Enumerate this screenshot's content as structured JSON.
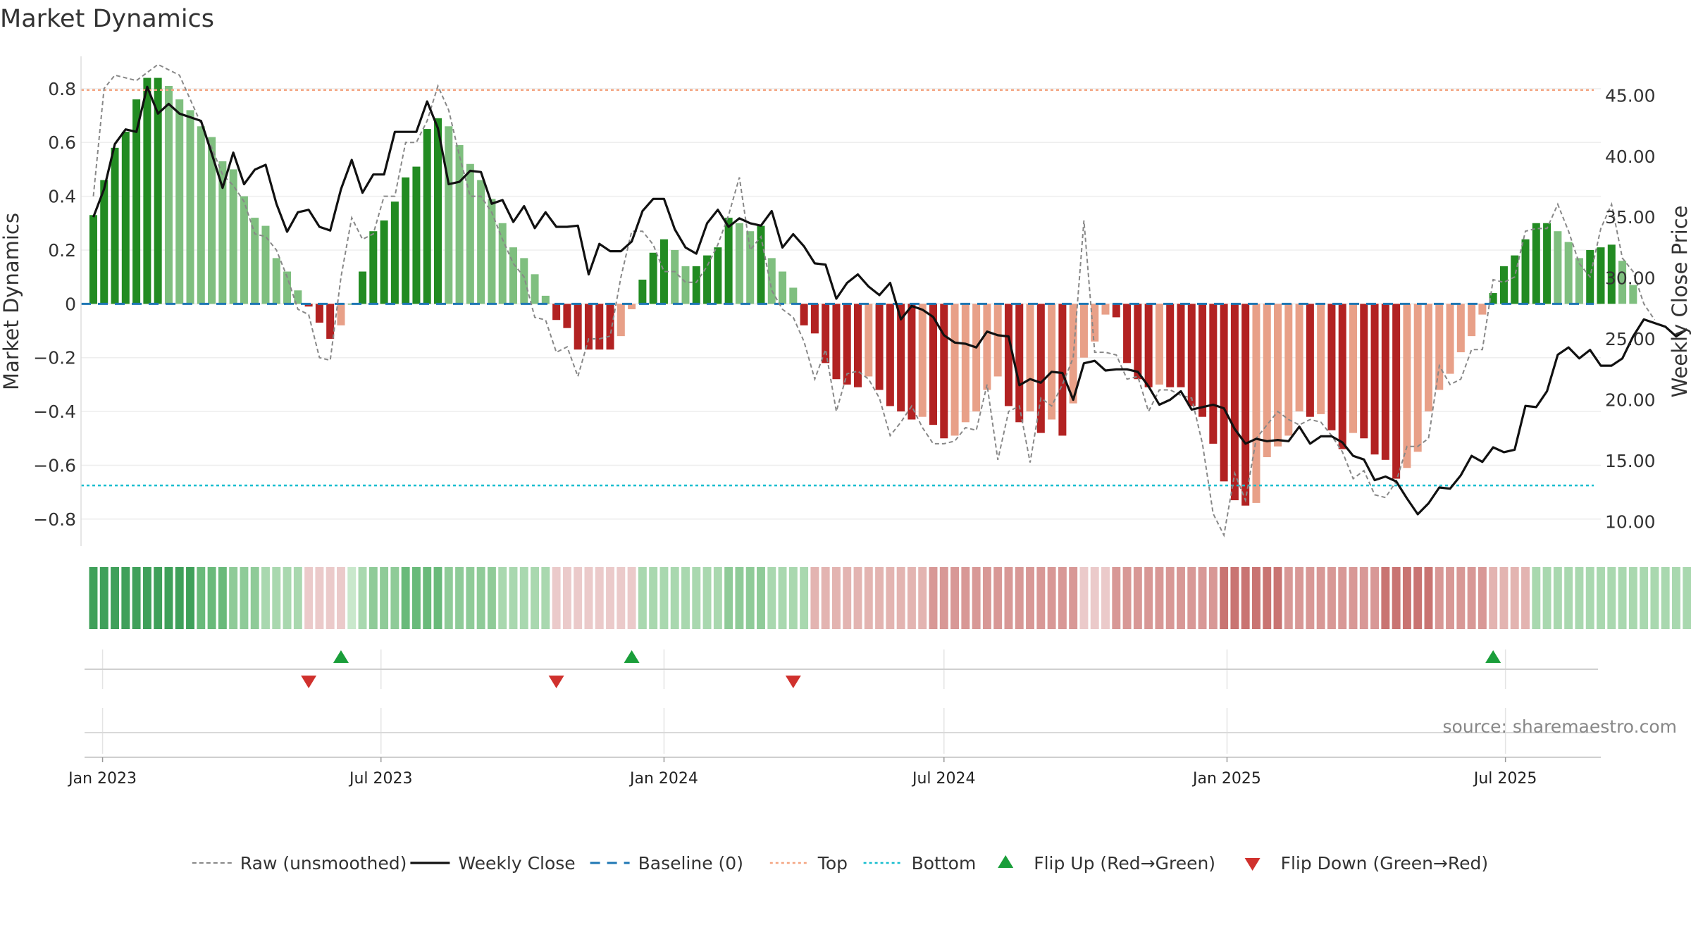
{
  "title": "Market Dynamics",
  "source": "source: sharemaestro.com",
  "colors": {
    "green_dark": "#228B22",
    "green_light": "#7FBF7F",
    "red_dark": "#B22222",
    "red_light": "#E8A088",
    "top_line": "#F4A582",
    "bottom_line": "#17BECF",
    "baseline": "#1F77B4",
    "close": "#111111",
    "raw": "#888888",
    "flip_up": "#1A9E3A",
    "flip_down": "#D0312D"
  },
  "chart_data": {
    "type": "bar",
    "title": "Market Dynamics",
    "y_label": "Market Dynamics",
    "y2_label": "Weekly Close Price",
    "y_ticks": [
      0.8,
      0.6,
      0.4,
      0.2,
      0,
      -0.2,
      -0.4,
      -0.6,
      -0.8
    ],
    "y_tick_labels": [
      "0.8",
      "0.6",
      "0.4",
      "0.2",
      "0",
      "−0.2",
      "−0.4",
      "−0.6",
      "−0.8"
    ],
    "y_range": [
      -0.9,
      0.92
    ],
    "y2_ticks": [
      45,
      40,
      35,
      30,
      25,
      20,
      15,
      10
    ],
    "y2_tick_labels": [
      "45.00",
      "40.00",
      "35.00",
      "30.00",
      "25.00",
      "20.00",
      "15.00",
      "10.00"
    ],
    "y2_range": [
      8.0,
      48.2
    ],
    "x_ticks": [
      "2023-01-01",
      "2023-07-01",
      "2024-01-01",
      "2024-07-01",
      "2025-01-01",
      "2025-07-01"
    ],
    "x_tick_labels": [
      "Jan 2023",
      "Jul 2023",
      "Jan 2024",
      "Jul 2024",
      "Jan 2025",
      "Jul 2025"
    ],
    "x_range": [
      "2022-12-18",
      "2025-09-01"
    ],
    "top_level": 0.795,
    "bottom_level": -0.675,
    "baseline_level": 0,
    "start_date": "2022-12-26",
    "week_step_days": 7,
    "dynamics_bars": [
      0.33,
      0.46,
      0.58,
      0.64,
      0.76,
      0.84,
      0.84,
      0.81,
      0.76,
      0.72,
      0.66,
      0.62,
      0.53,
      0.5,
      0.4,
      0.32,
      0.29,
      0.17,
      0.12,
      0.05,
      -0.01,
      -0.07,
      -0.13,
      -0.08,
      0.0,
      0.12,
      0.27,
      0.31,
      0.38,
      0.47,
      0.51,
      0.65,
      0.69,
      0.66,
      0.59,
      0.52,
      0.46,
      0.39,
      0.3,
      0.21,
      0.17,
      0.11,
      0.03,
      -0.06,
      -0.09,
      -0.17,
      -0.17,
      -0.17,
      -0.17,
      -0.12,
      -0.02,
      0.09,
      0.19,
      0.24,
      0.2,
      0.14,
      0.14,
      0.18,
      0.21,
      0.32,
      0.3,
      0.27,
      0.29,
      0.17,
      0.12,
      0.06,
      -0.08,
      -0.11,
      -0.22,
      -0.28,
      -0.3,
      -0.31,
      -0.27,
      -0.32,
      -0.38,
      -0.4,
      -0.43,
      -0.42,
      -0.45,
      -0.5,
      -0.49,
      -0.44,
      -0.4,
      -0.32,
      -0.27,
      -0.38,
      -0.44,
      -0.4,
      -0.48,
      -0.43,
      -0.49,
      -0.37,
      -0.2,
      -0.14,
      -0.04,
      -0.05,
      -0.22,
      -0.28,
      -0.31,
      -0.3,
      -0.31,
      -0.31,
      -0.38,
      -0.42,
      -0.52,
      -0.66,
      -0.73,
      -0.75,
      -0.74,
      -0.57,
      -0.53,
      -0.49,
      -0.4,
      -0.42,
      -0.41,
      -0.47,
      -0.54,
      -0.48,
      -0.5,
      -0.56,
      -0.58,
      -0.65,
      -0.61,
      -0.55,
      -0.4,
      -0.32,
      -0.26,
      -0.18,
      -0.12,
      -0.04,
      0.04,
      0.14,
      0.18,
      0.24,
      0.3,
      0.3,
      0.27,
      0.23,
      0.17,
      0.2,
      0.21,
      0.22,
      0.16,
      0.07
    ],
    "state_levels": [
      5,
      5,
      5,
      5,
      5,
      5,
      5,
      5,
      5,
      5,
      4,
      4,
      4,
      3,
      3,
      3,
      2,
      2,
      2,
      2,
      -1,
      -1,
      -1,
      -1,
      1,
      2,
      3,
      3,
      3,
      4,
      4,
      4,
      4,
      3,
      3,
      3,
      3,
      3,
      2,
      2,
      2,
      2,
      2,
      -1,
      -1,
      -1,
      -1,
      -1,
      -1,
      -1,
      -1,
      2,
      2,
      2,
      2,
      2,
      2,
      2,
      2,
      3,
      3,
      3,
      3,
      2,
      2,
      2,
      2,
      -2,
      -2,
      -2,
      -2,
      -2,
      -2,
      -2,
      -2,
      -2,
      -2,
      -2,
      -3,
      -3,
      -3,
      -3,
      -3,
      -3,
      -3,
      -3,
      -3,
      -3,
      -3,
      -3,
      -3,
      -3,
      -1,
      -1,
      -1,
      -3,
      -3,
      -3,
      -3,
      -3,
      -3,
      -3,
      -3,
      -3,
      -3,
      -4,
      -4,
      -4,
      -4,
      -4,
      -4,
      -3,
      -3,
      -3,
      -3,
      -3,
      -3,
      -3,
      -3,
      -3,
      -4,
      -4,
      -4,
      -4,
      -4,
      -3,
      -3,
      -3,
      -3,
      -3,
      -2,
      -2,
      -2,
      -2,
      2,
      2,
      2,
      2,
      2,
      2,
      2,
      2,
      2,
      2,
      2,
      2,
      2,
      2,
      2,
      2
    ],
    "raw_series": [
      0.4,
      0.8,
      0.85,
      0.84,
      0.83,
      0.86,
      0.89,
      0.87,
      0.85,
      0.76,
      0.67,
      0.58,
      0.48,
      0.44,
      0.38,
      0.26,
      0.25,
      0.2,
      0.1,
      -0.02,
      -0.04,
      -0.2,
      -0.21,
      0.1,
      0.32,
      0.24,
      0.26,
      0.4,
      0.4,
      0.6,
      0.6,
      0.68,
      0.81,
      0.72,
      0.55,
      0.4,
      0.4,
      0.34,
      0.24,
      0.15,
      0.1,
      -0.05,
      -0.06,
      -0.18,
      -0.16,
      -0.27,
      -0.13,
      -0.13,
      -0.12,
      0.1,
      0.27,
      0.27,
      0.22,
      0.12,
      0.12,
      0.08,
      0.08,
      0.14,
      0.22,
      0.33,
      0.47,
      0.2,
      0.25,
      0.05,
      -0.02,
      -0.05,
      -0.14,
      -0.28,
      -0.17,
      -0.4,
      -0.26,
      -0.25,
      -0.28,
      -0.35,
      -0.49,
      -0.44,
      -0.38,
      -0.46,
      -0.52,
      -0.52,
      -0.51,
      -0.46,
      -0.47,
      -0.3,
      -0.58,
      -0.4,
      -0.38,
      -0.59,
      -0.35,
      -0.38,
      -0.3,
      -0.2,
      0.31,
      -0.18,
      -0.18,
      -0.19,
      -0.28,
      -0.27,
      -0.4,
      -0.32,
      -0.32,
      -0.34,
      -0.35,
      -0.52,
      -0.78,
      -0.86,
      -0.63,
      -0.73,
      -0.5,
      -0.45,
      -0.4,
      -0.43,
      -0.45,
      -0.43,
      -0.44,
      -0.49,
      -0.55,
      -0.65,
      -0.62,
      -0.71,
      -0.72,
      -0.66,
      -0.53,
      -0.53,
      -0.5,
      -0.23,
      -0.3,
      -0.28,
      -0.17,
      -0.17,
      0.09,
      0.08,
      0.1,
      0.27,
      0.28,
      0.28,
      0.37,
      0.27,
      0.15,
      0.1,
      0.28,
      0.37,
      0.17,
      0.12,
      0.0,
      -0.06
    ],
    "weekly_close": [
      35.0,
      37.3,
      41.0,
      42.2,
      42.0,
      45.7,
      43.5,
      44.3,
      43.5,
      43.2,
      42.9,
      40.2,
      37.4,
      40.3,
      37.7,
      38.9,
      39.3,
      36.1,
      33.8,
      35.4,
      35.6,
      34.2,
      33.9,
      37.3,
      39.7,
      37.0,
      38.5,
      38.5,
      42.0,
      42.0,
      42.0,
      44.5,
      42.3,
      37.7,
      37.9,
      38.8,
      38.7,
      36.1,
      36.4,
      34.6,
      35.9,
      34.1,
      35.4,
      34.2,
      34.2,
      34.3,
      30.3,
      32.8,
      32.2,
      32.2,
      33.0,
      35.5,
      36.5,
      36.5,
      34.0,
      32.5,
      32.0,
      34.5,
      35.6,
      34.2,
      34.9,
      34.5,
      34.3,
      35.5,
      32.5,
      33.6,
      32.6,
      31.2,
      31.1,
      28.3,
      29.6,
      30.3,
      29.3,
      28.6,
      29.6,
      26.6,
      27.7,
      27.4,
      26.8,
      25.3,
      24.7,
      24.6,
      24.3,
      25.6,
      25.3,
      25.2,
      21.2,
      21.7,
      21.4,
      22.3,
      22.2,
      20.0,
      23.0,
      23.2,
      22.4,
      22.5,
      22.5,
      22.3,
      21.1,
      19.6,
      20.0,
      20.7,
      19.2,
      19.4,
      19.6,
      19.3,
      17.6,
      16.4,
      16.8,
      16.6,
      16.7,
      16.6,
      17.8,
      16.4,
      17.0,
      17.0,
      16.5,
      15.4,
      15.1,
      13.4,
      13.7,
      13.3,
      11.9,
      10.6,
      11.5,
      12.8,
      12.7,
      13.8,
      15.4,
      14.9,
      16.1,
      15.7,
      15.9,
      19.5,
      19.4,
      20.7,
      23.7,
      24.3,
      23.4,
      24.1,
      22.8,
      22.8,
      23.4,
      25.2,
      26.6,
      26.3,
      26.0,
      25.2,
      25.8
    ],
    "flip_up_dates": [
      "2023-06-05",
      "2023-12-11",
      "2025-06-23"
    ],
    "flip_down_dates": [
      "2023-05-15",
      "2023-10-23",
      "2024-03-25"
    ],
    "legend": [
      {
        "label": "Raw (unsmoothed)",
        "kind": "dashed-gray"
      },
      {
        "label": "Weekly Close",
        "kind": "solid-black"
      },
      {
        "label": "Baseline (0)",
        "kind": "dashed-blue"
      },
      {
        "label": "Top",
        "kind": "dotted-orange"
      },
      {
        "label": "Bottom",
        "kind": "dotted-cyan"
      },
      {
        "label": "Flip Up (Red→Green)",
        "kind": "triangle-up"
      },
      {
        "label": "Flip Down (Green→Red)",
        "kind": "triangle-down"
      }
    ],
    "legend_position": "bottom-center"
  }
}
